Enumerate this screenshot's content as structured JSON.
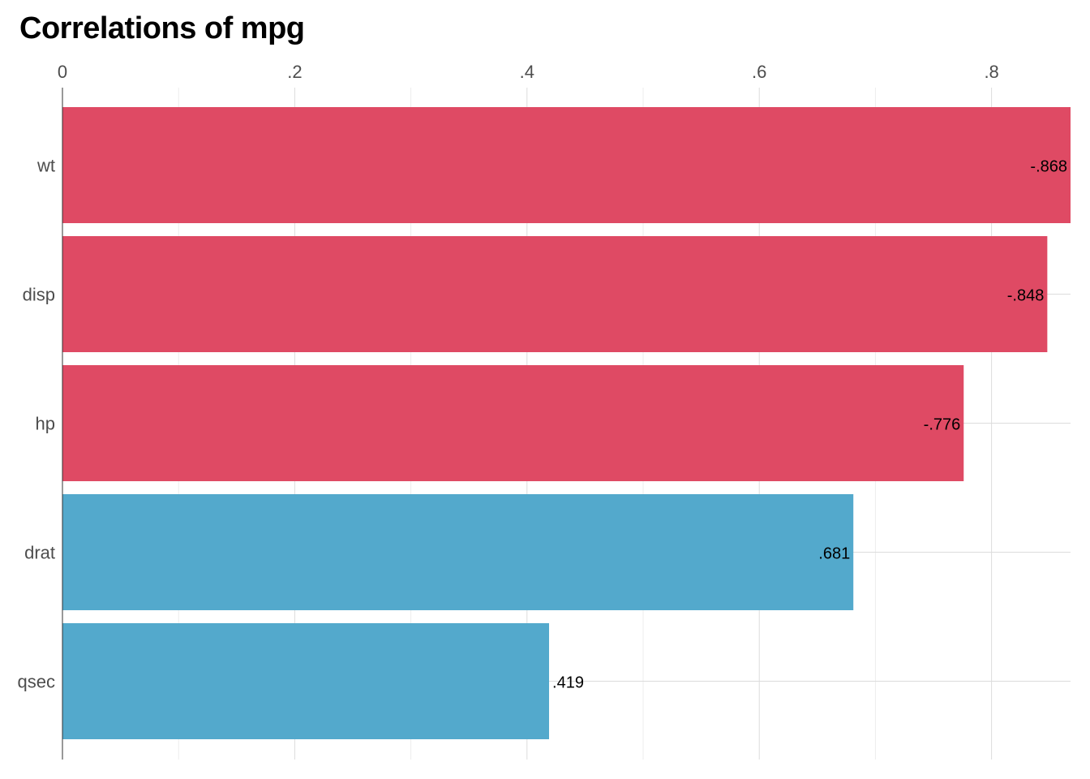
{
  "chart_data": {
    "type": "bar",
    "orientation": "horizontal",
    "title": "Correlations of mpg",
    "xlabel": "",
    "ylabel": "",
    "categories": [
      "wt",
      "disp",
      "hp",
      "drat",
      "qsec"
    ],
    "values": [
      -0.868,
      -0.848,
      -0.776,
      0.681,
      0.419
    ],
    "data_labels": [
      "-.868",
      "-.848",
      "-.776",
      ".681",
      ".419"
    ],
    "bar_length": "absolute value",
    "xlim": [
      0,
      0.868
    ],
    "x_ticks": [
      0,
      0.2,
      0.4,
      0.6,
      0.8
    ],
    "x_tick_labels": [
      "0",
      ".2",
      ".4",
      ".6",
      ".8"
    ],
    "x_axis_position": "top",
    "grid": true,
    "legend": "none",
    "colors": {
      "negative": "#DF4A64",
      "positive": "#53A9CC"
    }
  }
}
